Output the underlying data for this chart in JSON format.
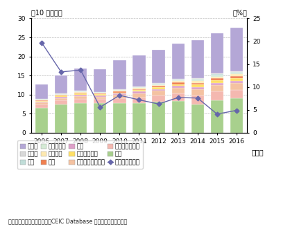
{
  "years": [
    2006,
    2007,
    2008,
    2009,
    2010,
    2011,
    2012,
    2013,
    2014,
    2015,
    2016
  ],
  "ylabel_left": "（10 億ドル）",
  "ylabel_right": "（%）",
  "xlabel": "（年）",
  "source": "資料：フィリピン中央銀行、CEIC Database から経済産業省作成。",
  "stacked_data": {
    "米国": [
      6.5,
      7.5,
      7.8,
      7.8,
      7.8,
      7.8,
      8.1,
      8.3,
      7.5,
      8.5,
      9.0
    ],
    "サウジアラビア": [
      0.9,
      1.0,
      1.1,
      1.1,
      1.3,
      1.5,
      1.7,
      2.0,
      2.3,
      2.3,
      2.2
    ],
    "アラブ首長国連邦": [
      0.5,
      0.6,
      0.7,
      0.6,
      0.8,
      1.0,
      1.2,
      1.4,
      1.6,
      1.7,
      1.8
    ],
    "英国": [
      0.3,
      0.35,
      0.4,
      0.3,
      0.4,
      0.5,
      0.5,
      0.55,
      0.6,
      0.6,
      0.6
    ],
    "シンガポール": [
      0.2,
      0.25,
      0.3,
      0.3,
      0.3,
      0.35,
      0.4,
      0.5,
      0.6,
      0.65,
      0.7
    ],
    "日本": [
      0.15,
      0.2,
      0.25,
      0.2,
      0.25,
      0.3,
      0.35,
      0.4,
      0.5,
      0.5,
      0.55
    ],
    "カタール": [
      0.1,
      0.1,
      0.15,
      0.15,
      0.2,
      0.25,
      0.3,
      0.4,
      0.5,
      0.5,
      0.5
    ],
    "クウェート": [
      0.1,
      0.1,
      0.12,
      0.1,
      0.15,
      0.18,
      0.2,
      0.25,
      0.3,
      0.3,
      0.35
    ],
    "香港": [
      0.1,
      0.1,
      0.12,
      0.1,
      0.12,
      0.15,
      0.17,
      0.2,
      0.25,
      0.27,
      0.3
    ],
    "ドイツ": [
      0.07,
      0.08,
      0.1,
      0.08,
      0.1,
      0.12,
      0.13,
      0.15,
      0.18,
      0.18,
      0.2
    ],
    "その他": [
      3.7,
      4.7,
      5.8,
      6.0,
      7.6,
      8.1,
      8.7,
      9.3,
      10.0,
      10.6,
      11.3
    ]
  },
  "bar_colors": {
    "米国": "#a8d08d",
    "サウジアラビア": "#f4b8b0",
    "アラブ首長国連邦": "#f4c2a1",
    "英国": "#dda0c8",
    "シンガポール": "#ffe066",
    "日本": "#f08050",
    "カタール": "#fde9b0",
    "クウェート": "#d5ead5",
    "香港": "#c0ddd8",
    "ドイツ": "#d8d8d8",
    "その他": "#b4a7d6"
  },
  "growth_rate": [
    19.7,
    13.3,
    13.7,
    5.6,
    8.2,
    7.2,
    6.3,
    7.7,
    7.6,
    4.1,
    4.9
  ],
  "growth_color": "#6666aa",
  "ylim_left": [
    0,
    30
  ],
  "ylim_right": [
    0,
    25
  ],
  "yticks_left": [
    0,
    5,
    10,
    15,
    20,
    25,
    30
  ],
  "yticks_right": [
    0,
    5,
    10,
    15,
    20,
    25
  ],
  "bottom_order": [
    "米国",
    "サウジアラビア",
    "アラブ首長国連邦",
    "英国",
    "シンガポール",
    "日本",
    "カタール",
    "クウェート",
    "香港",
    "ドイツ",
    "その他"
  ],
  "legend_order": [
    "その他",
    "ドイツ",
    "香港",
    "クウェート",
    "カタール",
    "日本",
    "英国",
    "シンガポール",
    "アラブ首長国連邦",
    "サウジアラビア",
    "米国"
  ],
  "legend_line_label": "前年比（右軸）"
}
